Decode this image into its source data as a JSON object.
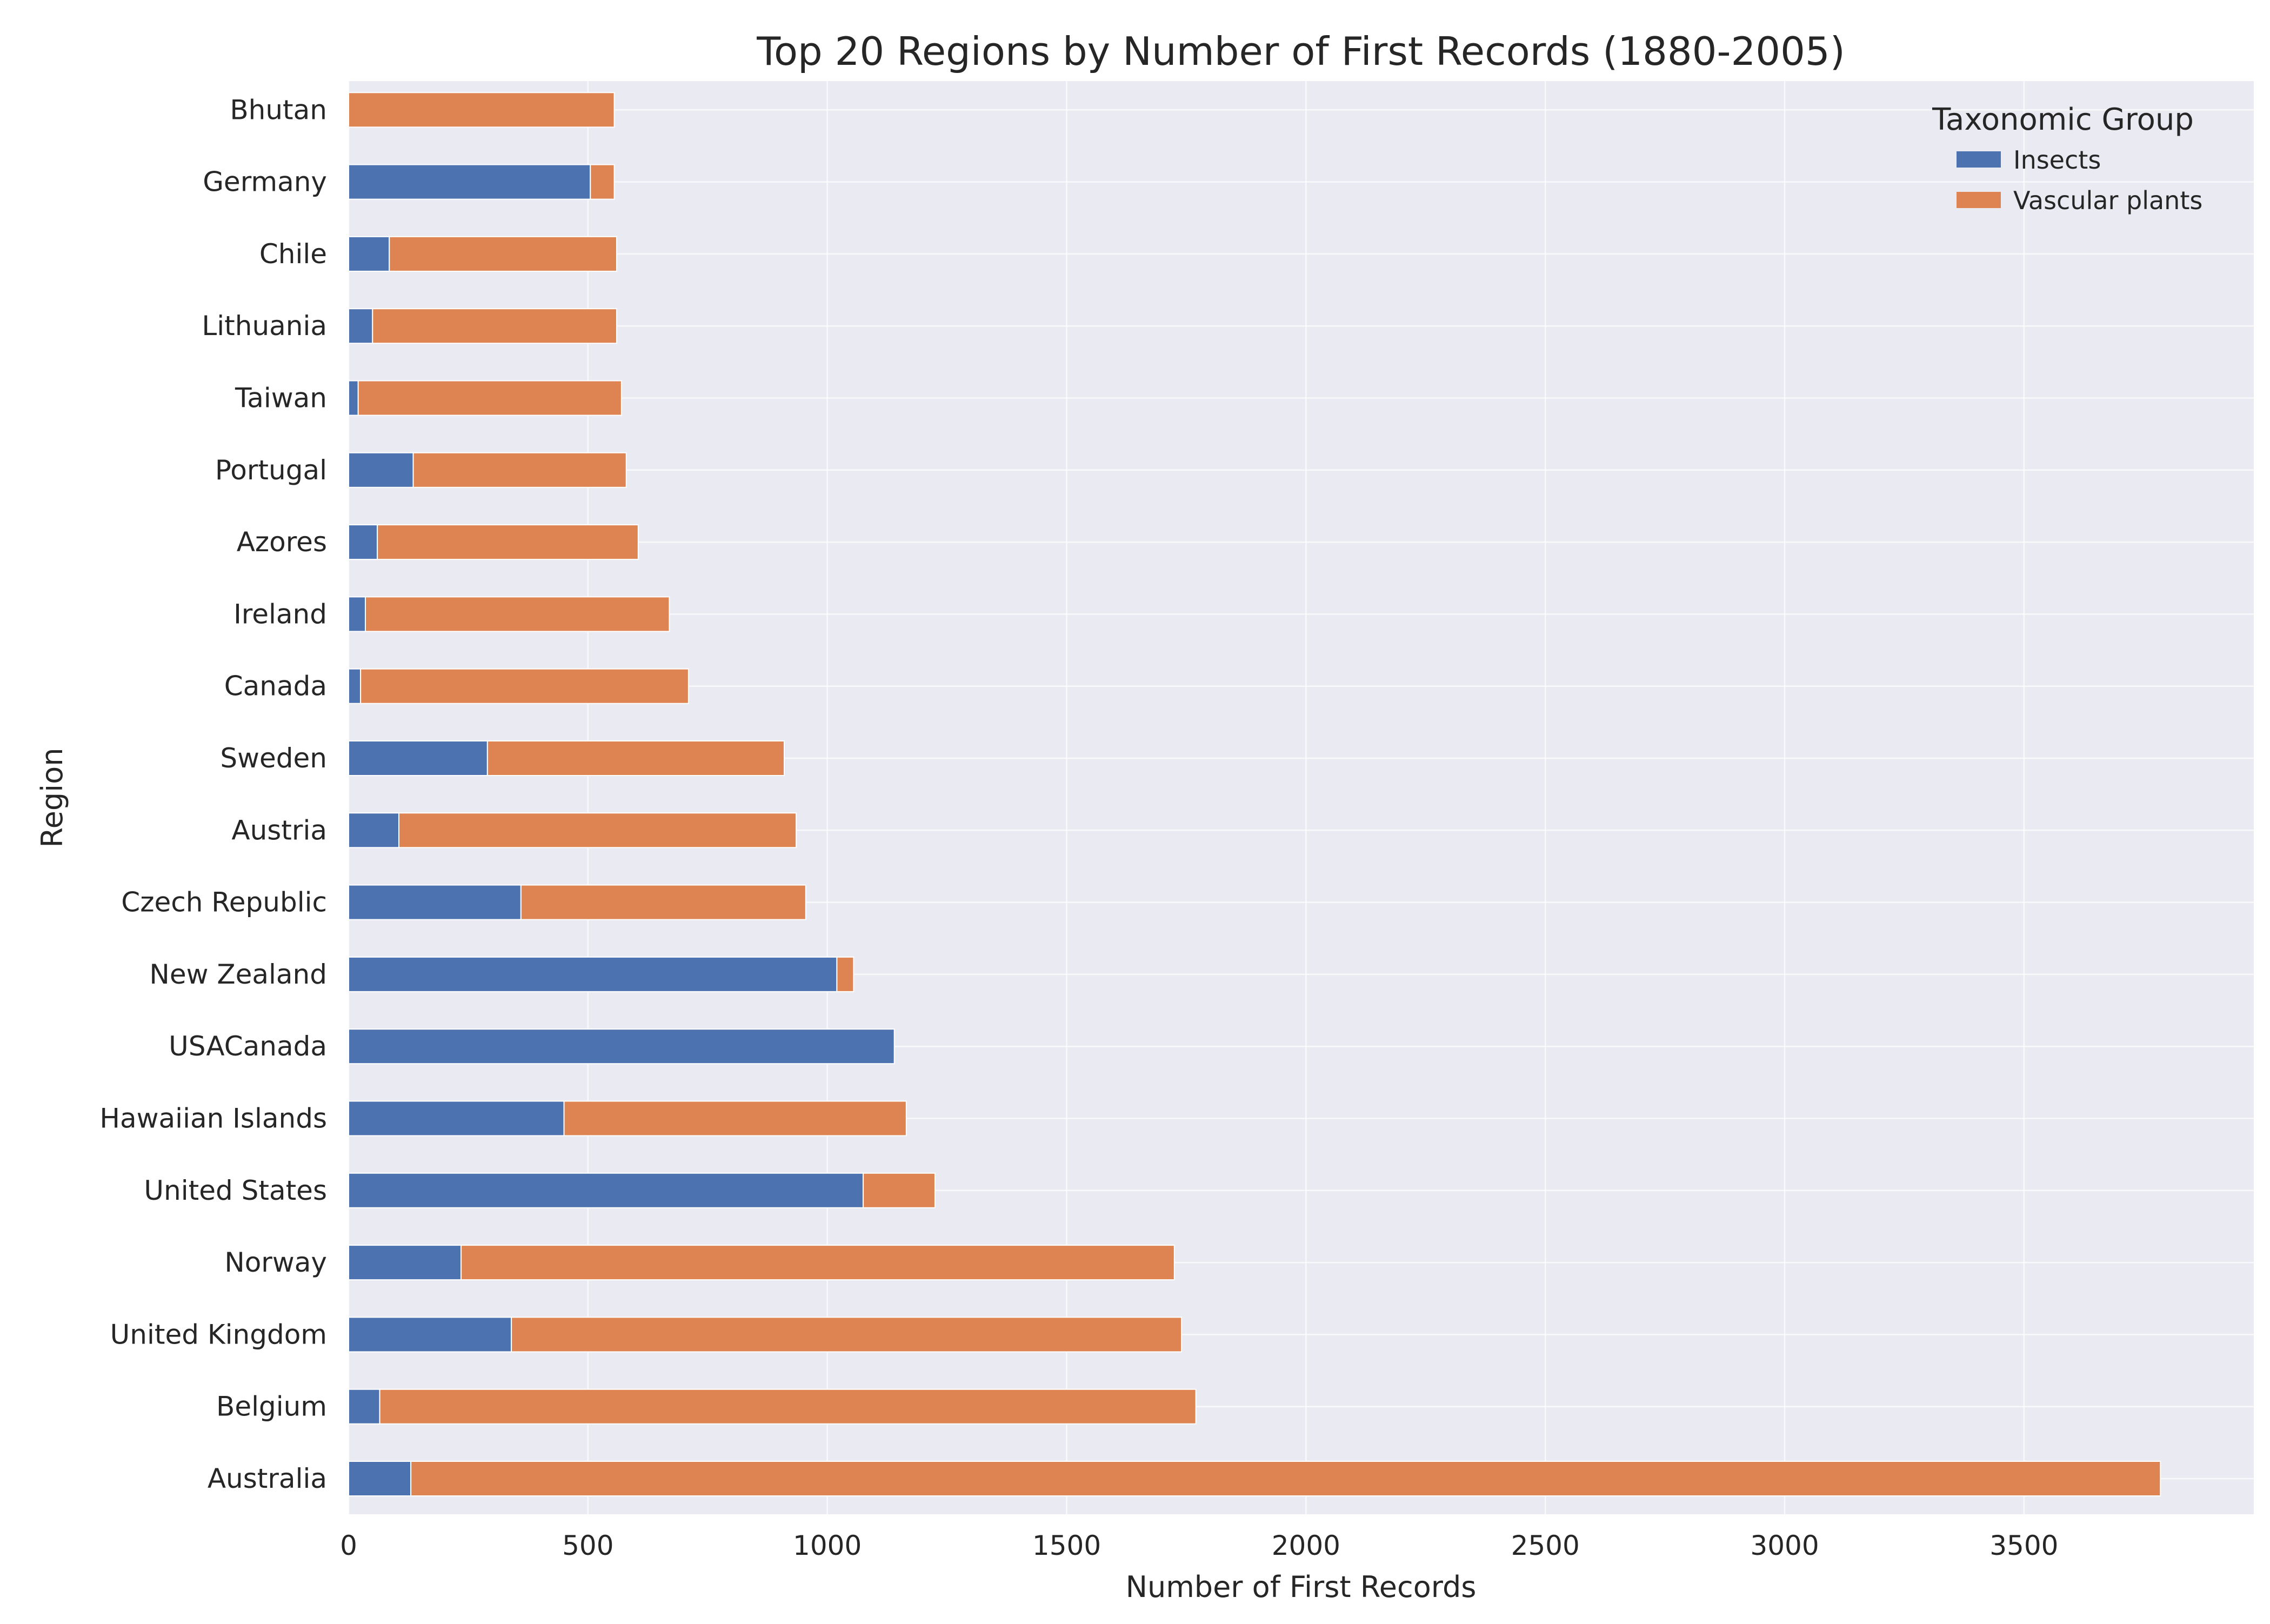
{
  "chart_data": {
    "type": "bar",
    "orientation": "horizontal",
    "stacked": true,
    "title": "Top 20 Regions by Number of First Records (1880-2005)",
    "xlabel": "Number of First Records",
    "ylabel": "Region",
    "xlim": [
      0,
      3980
    ],
    "xticks": [
      0,
      500,
      1000,
      1500,
      2000,
      2500,
      3000,
      3500
    ],
    "grid": true,
    "legend": {
      "title": "Taxonomic Group",
      "placement": "top-right"
    },
    "categories": [
      "Australia",
      "Belgium",
      "United Kingdom",
      "Norway",
      "United States",
      "Hawaiian Islands",
      "USACanada",
      "New Zealand",
      "Czech Republic",
      "Austria",
      "Sweden",
      "Canada",
      "Ireland",
      "Azores",
      "Portugal",
      "Taiwan",
      "Lithuania",
      "Chile",
      "Germany",
      "Bhutan"
    ],
    "series": [
      {
        "name": "Insects",
        "color": "#4c72b0",
        "values": [
          130,
          65,
          340,
          235,
          1075,
          450,
          1140,
          1020,
          360,
          105,
          290,
          25,
          35,
          60,
          135,
          20,
          50,
          85,
          505,
          0
        ]
      },
      {
        "name": "Vascular plants",
        "color": "#dd8452",
        "values": [
          3655,
          1705,
          1400,
          1490,
          150,
          715,
          0,
          35,
          595,
          830,
          620,
          685,
          635,
          545,
          445,
          550,
          510,
          475,
          50,
          555
        ]
      }
    ]
  }
}
